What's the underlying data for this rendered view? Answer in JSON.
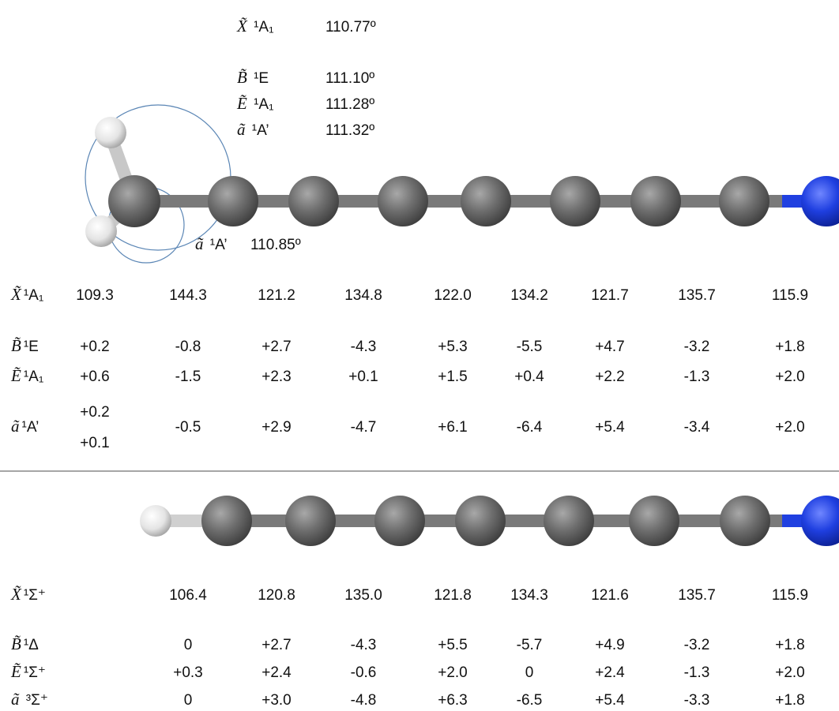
{
  "angles_top": [
    {
      "state": {
        "symbol": "X̃",
        "term": " ¹A₁"
      },
      "value": "110.77º"
    },
    {
      "state": {
        "symbol": "B̃",
        "term": " ¹E"
      },
      "value": "111.10º"
    },
    {
      "state": {
        "symbol": "Ẽ",
        "term": " ¹A₁"
      },
      "value": "111.28º"
    },
    {
      "state": {
        "symbol": "ã",
        "term": " ¹A’"
      },
      "value": "111.32º"
    }
  ],
  "angle_bottom": {
    "state": {
      "symbol": "ã",
      "term": " ¹A’"
    },
    "value": "110.85º"
  },
  "table1": {
    "rows": [
      {
        "state": {
          "symbol": "X̃",
          "term": "¹A₁"
        },
        "cells": [
          "109.3",
          "144.3",
          "121.2",
          "134.8",
          "122.0",
          "134.2",
          "121.7",
          "135.7",
          "115.9"
        ]
      },
      {
        "state": {
          "symbol": "B̃",
          "term": "¹E"
        },
        "cells": [
          "+0.2",
          "-0.8",
          "+2.7",
          "-4.3",
          "+5.3",
          "-5.5",
          "+4.7",
          "-3.2",
          "+1.8"
        ]
      },
      {
        "state": {
          "symbol": "Ẽ",
          "term": "¹A₁"
        },
        "cells": [
          "+0.6",
          "-1.5",
          "+2.3",
          "+0.1",
          "+1.5",
          "+0.4",
          "+2.2",
          "-1.3",
          "+2.0"
        ]
      },
      {
        "state": {
          "symbol": "ã",
          "term": "¹A’"
        },
        "cells": [
          [
            "+0.2",
            "+0.1"
          ],
          "-0.5",
          "+2.9",
          "-4.7",
          "+6.1",
          "-6.4",
          "+5.4",
          "-3.4",
          "+2.0"
        ]
      }
    ]
  },
  "table2": {
    "rows": [
      {
        "state": {
          "symbol": "X̃",
          "term": "¹Σ⁺"
        },
        "cells": [
          "106.4",
          "120.8",
          "135.0",
          "121.8",
          "134.3",
          "121.6",
          "135.7",
          "115.9"
        ]
      },
      {
        "state": {
          "symbol": "B̃",
          "term": "¹Δ"
        },
        "cells": [
          "0",
          "+2.7",
          "-4.3",
          "+5.5",
          "-5.7",
          "+4.9",
          "-3.2",
          "+1.8"
        ]
      },
      {
        "state": {
          "symbol": "Ẽ",
          "term": "¹Σ⁺"
        },
        "cells": [
          "+0.3",
          "+2.4",
          "-0.6",
          "+2.0",
          "0",
          "+2.4",
          "-1.3",
          "+2.0"
        ]
      },
      {
        "state": {
          "symbol": "ã",
          "term": " ³Σ⁺"
        },
        "cells": [
          "0",
          "+3.0",
          "-4.8",
          "+6.3",
          "-6.5",
          "+5.4",
          "-3.3",
          "+1.8"
        ]
      }
    ]
  }
}
